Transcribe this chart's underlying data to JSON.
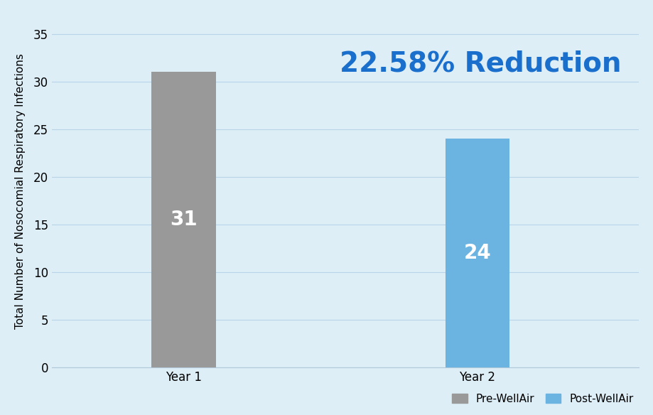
{
  "categories": [
    "Year 1",
    "Year 2"
  ],
  "values": [
    31,
    24
  ],
  "bar_colors": [
    "#999999",
    "#6bb3e0"
  ],
  "background_color": "#ddeef7",
  "ylabel": "Total Number of Nosocomial Respiratory Infections",
  "ylim": [
    0,
    37
  ],
  "yticks": [
    0,
    5,
    10,
    15,
    20,
    25,
    30,
    35
  ],
  "annotation_text": "22.58% Reduction",
  "annotation_color": "#1a6fcc",
  "bar_label_color": "#ffffff",
  "bar_label_fontsize": 20,
  "bar_label_fontweight": "bold",
  "legend_labels": [
    "Pre-WellAir",
    "Post-WellAir"
  ],
  "legend_colors": [
    "#999999",
    "#6bb3e0"
  ],
  "annotation_fontsize": 28,
  "annotation_fontweight": "bold",
  "ylabel_fontsize": 11,
  "tick_fontsize": 12,
  "grid_color": "#b8d4e6",
  "bar_width": 0.22
}
